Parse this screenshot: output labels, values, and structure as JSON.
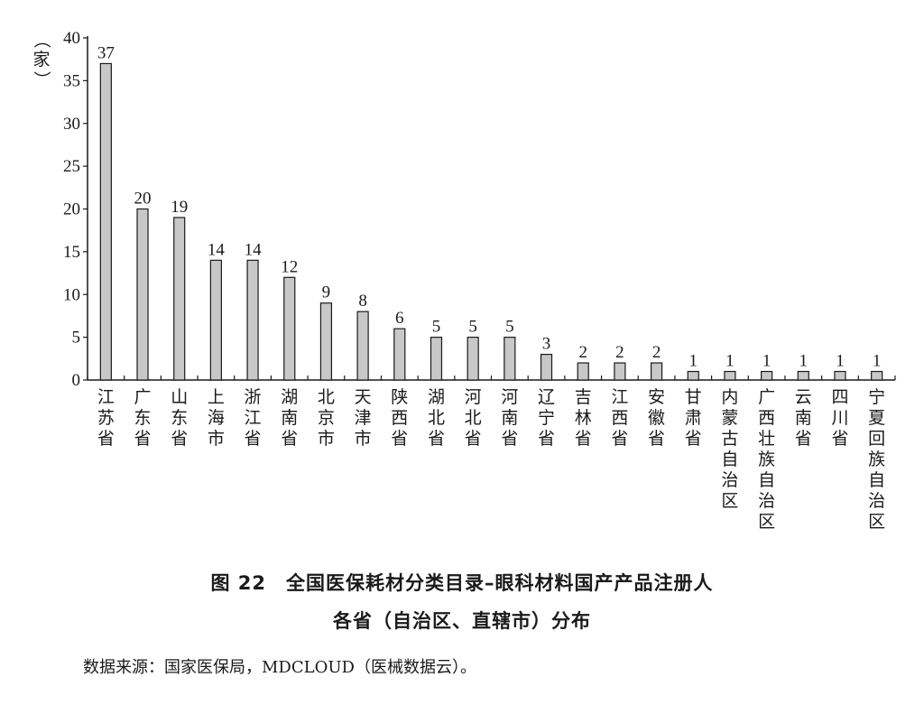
{
  "chart_data": {
    "type": "bar",
    "ylabel": "（家）",
    "ylim": [
      0,
      40
    ],
    "yticks": [
      0,
      5,
      10,
      15,
      20,
      25,
      30,
      35,
      40
    ],
    "categories": [
      "江苏省",
      "广东省",
      "山东省",
      "上海市",
      "浙江省",
      "湖南省",
      "北京市",
      "天津市",
      "陕西省",
      "湖北省",
      "河北省",
      "河南省",
      "辽宁省",
      "吉林省",
      "江西省",
      "安徽省",
      "甘肃省",
      "内蒙古自治区",
      "广西壮族自治区",
      "云南省",
      "四川省",
      "宁夏回族自治区"
    ],
    "values": [
      37,
      20,
      19,
      14,
      14,
      12,
      9,
      8,
      6,
      5,
      5,
      5,
      3,
      2,
      2,
      2,
      1,
      1,
      1,
      1,
      1,
      1
    ],
    "grid": false,
    "bar_color": "#c8c8c8"
  },
  "caption": {
    "line1": "图 22　全国医保耗材分类目录–眼科材料国产产品注册人",
    "line2": "各省（自治区、直辖市）分布"
  },
  "source": "数据来源：国家医保局，MDCLOUD（医械数据云）。"
}
